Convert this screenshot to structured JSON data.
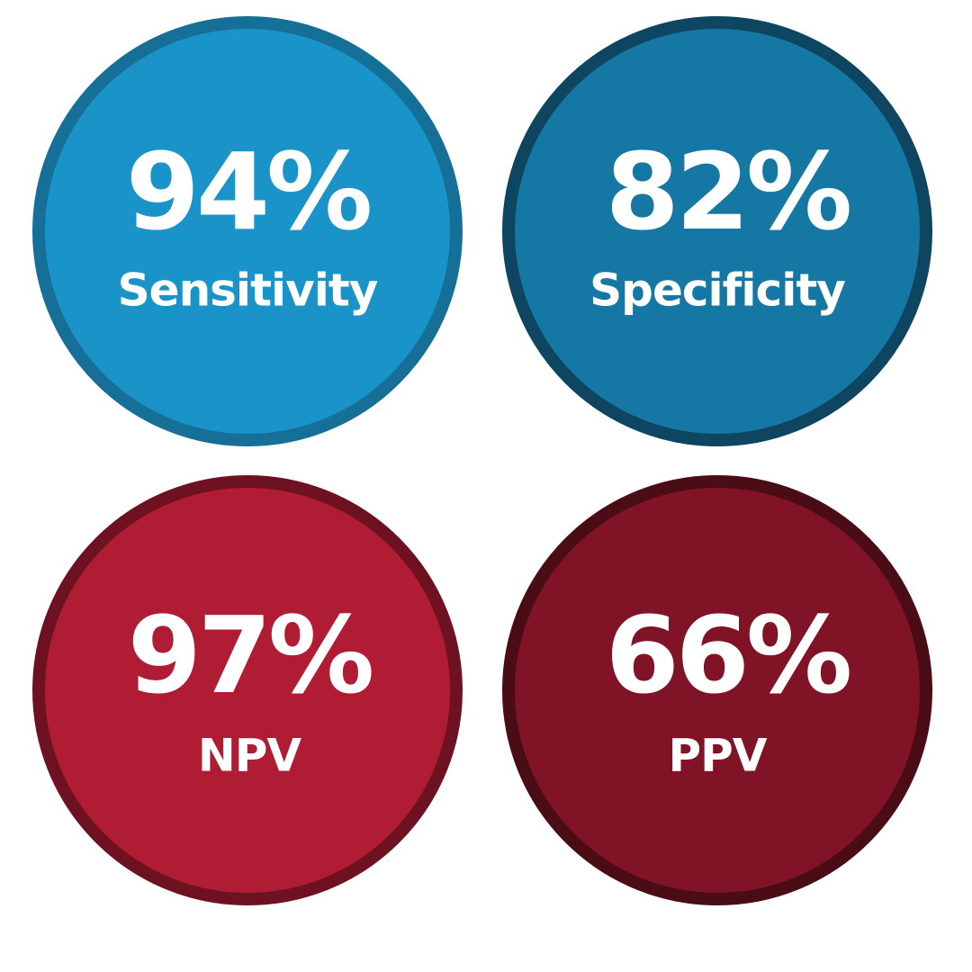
{
  "stats": [
    {
      "value": "94%",
      "label": "Sensitivity"
    },
    {
      "value": "82%",
      "label": "Specificity"
    },
    {
      "value": "97%",
      "label": "NPV"
    },
    {
      "value": "66%",
      "label": "PPV"
    }
  ]
}
